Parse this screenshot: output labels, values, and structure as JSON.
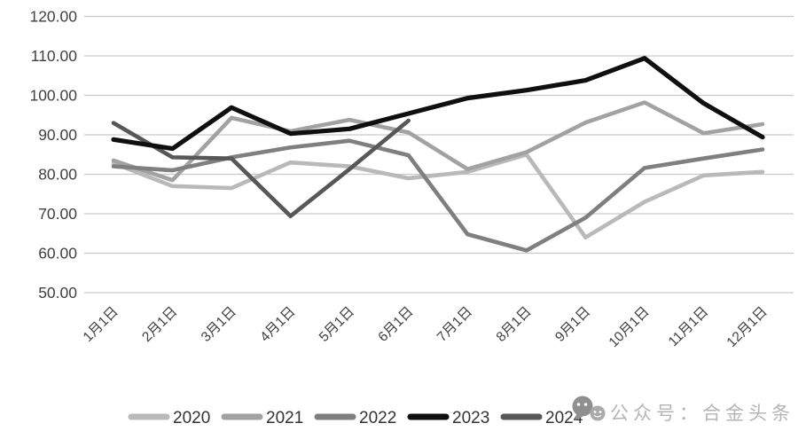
{
  "chart_data": {
    "type": "line",
    "title": "",
    "xlabel": "",
    "ylabel": "",
    "categories": [
      "1月1日",
      "2月1日",
      "3月1日",
      "4月1日",
      "5月1日",
      "6月1日",
      "7月1日",
      "8月1日",
      "9月1日",
      "10月1日",
      "11月1日",
      "12月1日"
    ],
    "series": [
      {
        "name": "2020",
        "color": "#b9b9b9",
        "values": [
          82.8,
          77.0,
          76.5,
          83.0,
          82.0,
          79.0,
          80.6,
          85.0,
          64.0,
          73.0,
          79.7,
          80.6
        ]
      },
      {
        "name": "2021",
        "color": "#a2a2a2",
        "values": [
          83.5,
          78.5,
          94.3,
          90.9,
          93.8,
          90.6,
          81.3,
          85.6,
          93.1,
          98.2,
          90.4,
          92.7
        ]
      },
      {
        "name": "2022",
        "color": "#7f7f7f",
        "values": [
          82.0,
          81.0,
          84.3,
          86.8,
          88.5,
          84.8,
          64.8,
          60.7,
          69.0,
          81.6,
          84.0,
          86.3
        ]
      },
      {
        "name": "2023",
        "color": "#0f0f0f",
        "values": [
          88.8,
          86.5,
          96.9,
          90.3,
          91.5,
          95.4,
          99.3,
          101.3,
          103.8,
          109.4,
          98.0,
          89.4
        ]
      },
      {
        "name": "2024",
        "color": "#575757",
        "values": [
          93.0,
          84.3,
          84.0,
          69.4,
          81.3,
          93.6,
          null,
          null,
          null,
          null,
          null,
          null
        ]
      }
    ],
    "ylim": [
      50,
      120
    ],
    "ytick_step": 10,
    "ytick_labels": [
      "50.00",
      "60.00",
      "70.00",
      "80.00",
      "90.00",
      "100.00",
      "110.00",
      "120.00"
    ],
    "grid": "horizontal-only",
    "legend_position": "bottom",
    "legend_entries": [
      "2020",
      "2021",
      "2022",
      "2023",
      "2024"
    ]
  },
  "watermark": {
    "text": "公众号：合金头条",
    "icon": "wechat-chat-bubbles-icon"
  },
  "style": {
    "background": "#ffffff",
    "gridline_color": "#c9c9c9",
    "tick_label_color": "#3f3f3f",
    "legend_label_color": "#333333",
    "watermark_color": "#b5b5b5"
  }
}
